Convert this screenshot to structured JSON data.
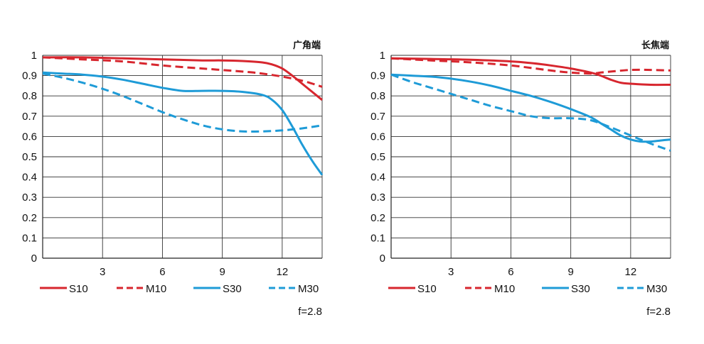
{
  "chart_data": [
    {
      "type": "line",
      "title": "广角端",
      "aperture_label": "f=2.8",
      "xlim": [
        0,
        14
      ],
      "ylim": [
        0,
        1
      ],
      "x_ticks": [
        "3",
        "6",
        "9",
        "12"
      ],
      "y_ticks": [
        "1",
        "0.9",
        "0.8",
        "0.7",
        "0.6",
        "0.5",
        "0.4",
        "0.3",
        "0.2",
        "0.1",
        "0"
      ],
      "legend": [
        "S10",
        "M10",
        "S30",
        "M30"
      ],
      "series": [
        {
          "name": "S10",
          "color": "#d7262e",
          "style": "solid",
          "x": [
            0,
            2,
            4,
            6,
            8,
            9,
            10,
            11,
            11.5,
            12,
            12.5,
            13,
            13.5,
            14
          ],
          "y": [
            0.99,
            0.99,
            0.985,
            0.98,
            0.975,
            0.975,
            0.972,
            0.965,
            0.955,
            0.935,
            0.9,
            0.86,
            0.82,
            0.78
          ]
        },
        {
          "name": "M10",
          "color": "#d7262e",
          "style": "dashed",
          "x": [
            0,
            2,
            4,
            6,
            8,
            10,
            11,
            12,
            13,
            14
          ],
          "y": [
            0.99,
            0.98,
            0.97,
            0.95,
            0.935,
            0.92,
            0.91,
            0.895,
            0.875,
            0.845
          ]
        },
        {
          "name": "S30",
          "color": "#1e9bd7",
          "style": "solid",
          "x": [
            0,
            1,
            2,
            3,
            4,
            5,
            6,
            7,
            8,
            9,
            10,
            11,
            11.5,
            12,
            12.5,
            13,
            13.5,
            14
          ],
          "y": [
            0.915,
            0.91,
            0.905,
            0.895,
            0.88,
            0.86,
            0.84,
            0.825,
            0.825,
            0.825,
            0.82,
            0.805,
            0.78,
            0.73,
            0.65,
            0.56,
            0.48,
            0.41
          ]
        },
        {
          "name": "M30",
          "color": "#1e9bd7",
          "style": "dashed",
          "x": [
            0,
            1,
            2,
            3,
            4,
            5,
            6,
            7,
            8,
            9,
            10,
            11,
            12,
            13,
            14
          ],
          "y": [
            0.91,
            0.89,
            0.865,
            0.835,
            0.8,
            0.76,
            0.72,
            0.685,
            0.655,
            0.635,
            0.625,
            0.625,
            0.63,
            0.64,
            0.655
          ]
        }
      ]
    },
    {
      "type": "line",
      "title": "长焦端",
      "aperture_label": "f=2.8",
      "xlim": [
        0,
        14
      ],
      "ylim": [
        0,
        1
      ],
      "x_ticks": [
        "3",
        "6",
        "9",
        "12"
      ],
      "y_ticks": [
        "1",
        "0.9",
        "0.8",
        "0.7",
        "0.6",
        "0.5",
        "0.4",
        "0.3",
        "0.2",
        "0.1",
        "0"
      ],
      "legend": [
        "S10",
        "M10",
        "S30",
        "M30"
      ],
      "series": [
        {
          "name": "S10",
          "color": "#d7262e",
          "style": "solid",
          "x": [
            0,
            2,
            4,
            6,
            7,
            8,
            9,
            10,
            10.5,
            11,
            11.5,
            12,
            13,
            14
          ],
          "y": [
            0.985,
            0.982,
            0.978,
            0.97,
            0.962,
            0.95,
            0.935,
            0.915,
            0.9,
            0.88,
            0.865,
            0.86,
            0.855,
            0.855
          ]
        },
        {
          "name": "M10",
          "color": "#d7262e",
          "style": "dashed",
          "x": [
            0,
            2,
            4,
            6,
            8,
            9,
            10,
            10.5,
            11,
            12,
            13,
            14
          ],
          "y": [
            0.985,
            0.975,
            0.965,
            0.95,
            0.925,
            0.915,
            0.91,
            0.915,
            0.92,
            0.928,
            0.928,
            0.925
          ]
        },
        {
          "name": "S30",
          "color": "#1e9bd7",
          "style": "solid",
          "x": [
            0,
            1,
            2,
            3,
            4,
            5,
            6,
            7,
            8,
            9,
            10,
            10.5,
            11,
            11.5,
            12,
            12.5,
            13,
            13.5,
            14
          ],
          "y": [
            0.905,
            0.9,
            0.895,
            0.885,
            0.87,
            0.85,
            0.825,
            0.8,
            0.77,
            0.735,
            0.695,
            0.665,
            0.635,
            0.605,
            0.585,
            0.575,
            0.575,
            0.58,
            0.585
          ]
        },
        {
          "name": "M30",
          "color": "#1e9bd7",
          "style": "dashed",
          "x": [
            0,
            1,
            2,
            3,
            4,
            5,
            6,
            7,
            8,
            9,
            10,
            11,
            12,
            13,
            14
          ],
          "y": [
            0.905,
            0.87,
            0.84,
            0.81,
            0.78,
            0.75,
            0.725,
            0.7,
            0.69,
            0.69,
            0.68,
            0.645,
            0.605,
            0.565,
            0.53
          ]
        }
      ]
    }
  ]
}
